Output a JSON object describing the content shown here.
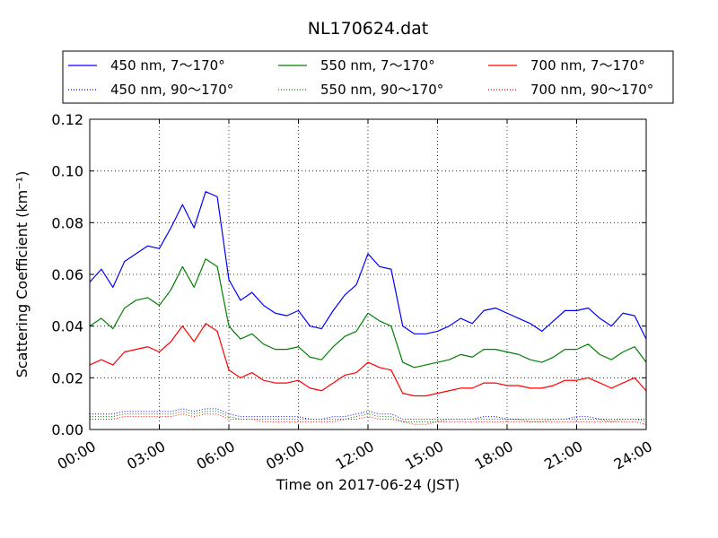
{
  "chart_data": {
    "type": "line",
    "title": "NL170624.dat",
    "xlabel": "Time on 2017-06-24 (JST)",
    "ylabel": "Scattering Coefficient (km⁻¹)",
    "xlim": [
      "00:00",
      "24:00"
    ],
    "ylim": [
      0.0,
      0.12
    ],
    "x_tick_labels": [
      "00:00",
      "03:00",
      "06:00",
      "09:00",
      "12:00",
      "15:00",
      "18:00",
      "21:00",
      "24:00"
    ],
    "y_tick_labels": [
      "0.00",
      "0.02",
      "0.04",
      "0.06",
      "0.08",
      "0.10",
      "0.12"
    ],
    "grid": true,
    "legend_position": "top",
    "x": [
      "00:00",
      "00:30",
      "01:00",
      "01:30",
      "02:00",
      "02:30",
      "03:00",
      "03:30",
      "04:00",
      "04:30",
      "05:00",
      "05:30",
      "06:00",
      "06:30",
      "07:00",
      "07:30",
      "08:00",
      "08:30",
      "09:00",
      "09:30",
      "10:00",
      "10:30",
      "11:00",
      "11:30",
      "12:00",
      "12:30",
      "13:00",
      "13:30",
      "14:00",
      "14:30",
      "15:00",
      "15:30",
      "16:00",
      "16:30",
      "17:00",
      "17:30",
      "18:00",
      "18:30",
      "19:00",
      "19:30",
      "20:00",
      "20:30",
      "21:00",
      "21:30",
      "22:00",
      "22:30",
      "23:00",
      "23:30",
      "24:00"
    ],
    "series": [
      {
        "name": "450 nm, 7～170°",
        "color": "#0000ff",
        "style": "solid",
        "values": [
          0.057,
          0.062,
          0.055,
          0.065,
          0.068,
          0.071,
          0.07,
          0.078,
          0.087,
          0.078,
          0.092,
          0.09,
          0.058,
          0.05,
          0.053,
          0.048,
          0.045,
          0.044,
          0.046,
          0.04,
          0.039,
          0.046,
          0.052,
          0.056,
          0.068,
          0.063,
          0.062,
          0.04,
          0.037,
          0.037,
          0.038,
          0.04,
          0.043,
          0.041,
          0.046,
          0.047,
          0.045,
          0.043,
          0.041,
          0.038,
          0.042,
          0.046,
          0.046,
          0.047,
          0.043,
          0.04,
          0.045,
          0.044,
          0.035
        ]
      },
      {
        "name": "550 nm, 7～170°",
        "color": "#008000",
        "style": "solid",
        "values": [
          0.04,
          0.043,
          0.039,
          0.047,
          0.05,
          0.051,
          0.048,
          0.054,
          0.063,
          0.055,
          0.066,
          0.063,
          0.04,
          0.035,
          0.037,
          0.033,
          0.031,
          0.031,
          0.032,
          0.028,
          0.027,
          0.032,
          0.036,
          0.038,
          0.045,
          0.042,
          0.04,
          0.026,
          0.024,
          0.025,
          0.026,
          0.027,
          0.029,
          0.028,
          0.031,
          0.031,
          0.03,
          0.029,
          0.027,
          0.026,
          0.028,
          0.031,
          0.031,
          0.033,
          0.029,
          0.027,
          0.03,
          0.032,
          0.026
        ]
      },
      {
        "name": "700 nm, 7～170°",
        "color": "#ff0000",
        "style": "solid",
        "values": [
          0.025,
          0.027,
          0.025,
          0.03,
          0.031,
          0.032,
          0.03,
          0.034,
          0.04,
          0.034,
          0.041,
          0.038,
          0.023,
          0.02,
          0.022,
          0.019,
          0.018,
          0.018,
          0.019,
          0.016,
          0.015,
          0.018,
          0.021,
          0.022,
          0.026,
          0.024,
          0.023,
          0.014,
          0.013,
          0.013,
          0.014,
          0.015,
          0.016,
          0.016,
          0.018,
          0.018,
          0.017,
          0.017,
          0.016,
          0.016,
          0.017,
          0.019,
          0.019,
          0.02,
          0.018,
          0.016,
          0.018,
          0.02,
          0.015
        ]
      },
      {
        "name": "450 nm, 90～170°",
        "color": "#0000ff",
        "style": "dotted",
        "values": [
          0.006,
          0.006,
          0.006,
          0.007,
          0.007,
          0.007,
          0.007,
          0.007,
          0.008,
          0.007,
          0.008,
          0.008,
          0.006,
          0.005,
          0.005,
          0.005,
          0.005,
          0.005,
          0.005,
          0.004,
          0.004,
          0.005,
          0.005,
          0.006,
          0.007,
          0.006,
          0.006,
          0.004,
          0.004,
          0.004,
          0.004,
          0.004,
          0.004,
          0.004,
          0.005,
          0.005,
          0.004,
          0.004,
          0.004,
          0.004,
          0.004,
          0.004,
          0.005,
          0.005,
          0.004,
          0.004,
          0.004,
          0.004,
          0.004
        ]
      },
      {
        "name": "550 nm, 90～170°",
        "color": "#008000",
        "style": "dotted",
        "values": [
          0.005,
          0.005,
          0.005,
          0.006,
          0.006,
          0.006,
          0.006,
          0.006,
          0.007,
          0.006,
          0.007,
          0.007,
          0.005,
          0.004,
          0.004,
          0.004,
          0.004,
          0.004,
          0.004,
          0.004,
          0.004,
          0.004,
          0.004,
          0.005,
          0.006,
          0.005,
          0.005,
          0.003,
          0.003,
          0.003,
          0.003,
          0.004,
          0.004,
          0.004,
          0.004,
          0.004,
          0.004,
          0.004,
          0.003,
          0.003,
          0.004,
          0.004,
          0.004,
          0.004,
          0.004,
          0.003,
          0.004,
          0.004,
          0.003
        ]
      },
      {
        "name": "700 nm, 90～170°",
        "color": "#ff0000",
        "style": "dotted",
        "values": [
          0.004,
          0.004,
          0.004,
          0.005,
          0.005,
          0.005,
          0.005,
          0.005,
          0.006,
          0.005,
          0.006,
          0.006,
          0.004,
          0.004,
          0.004,
          0.003,
          0.003,
          0.003,
          0.003,
          0.003,
          0.003,
          0.003,
          0.004,
          0.004,
          0.005,
          0.004,
          0.004,
          0.003,
          0.002,
          0.002,
          0.003,
          0.003,
          0.003,
          0.003,
          0.003,
          0.003,
          0.003,
          0.003,
          0.003,
          0.003,
          0.003,
          0.003,
          0.003,
          0.003,
          0.003,
          0.003,
          0.003,
          0.003,
          0.002
        ]
      }
    ]
  }
}
